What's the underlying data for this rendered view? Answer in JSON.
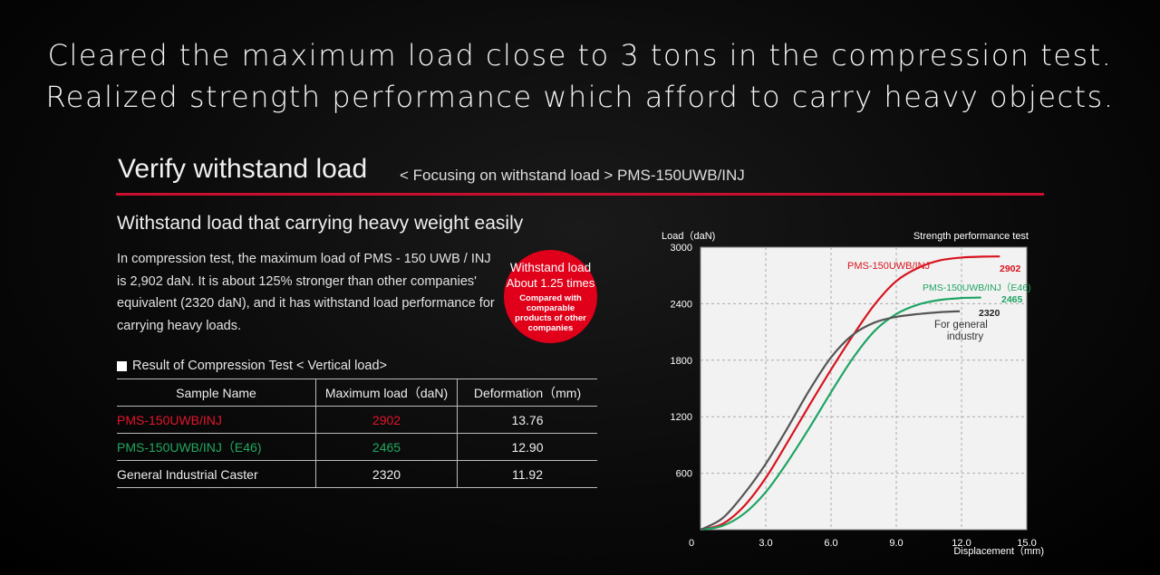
{
  "headline": {
    "line1": "Cleared the maximum load close to 3 tons in the compression test.",
    "line2": "Realized strength performance which afford to carry heavy objects."
  },
  "section": {
    "title": "Verify withstand load",
    "subtitle": "< Focusing on withstand load > PMS-150UWB/INJ"
  },
  "subhead": "Withstand load that carrying heavy weight easily",
  "description": "In compression test, the maximum load of PMS - 150 UWB / INJ is 2,902 daN. It is about 125% stronger than other companies' equivalent (2320 daN), and it has withstand load performance for carrying heavy loads.",
  "badge": {
    "line1": "Withstand load",
    "line2": "About 1.25 times",
    "line3": "Compared with comparable  products of other companies",
    "color": "#e0001a"
  },
  "table": {
    "label": "Result of Compression Test < Vertical load>",
    "headers": [
      "Sample Name",
      "Maximum load（daN)",
      "Deformation（mm)"
    ],
    "rows": [
      {
        "name": "PMS-150UWB/INJ",
        "load": "2902",
        "deformation": "13.76"
      },
      {
        "name": "PMS-150UWB/INJ（E46)",
        "load": "2465",
        "deformation": "12.90"
      },
      {
        "name": "General Industrial Caster",
        "load": "2320",
        "deformation": "11.92"
      }
    ]
  },
  "chart_data": {
    "type": "line",
    "title": "Strength performance test",
    "xlabel": "Displacement（mm)",
    "ylabel": "Load（daN)",
    "xlim": [
      0,
      15
    ],
    "ylim": [
      0,
      3000
    ],
    "x_ticks": [
      "0",
      "3.0",
      "6.0",
      "9.0",
      "12.0",
      "15.0"
    ],
    "y_ticks": [
      "600",
      "1200",
      "1800",
      "2400",
      "3000"
    ],
    "grid": true,
    "series": [
      {
        "name": "PMS-150UWB/INJ",
        "color": "#d7141e",
        "end_label": "2902",
        "x": [
          0,
          1,
          2,
          3,
          4,
          5,
          6,
          7,
          8,
          9,
          10,
          11,
          12,
          13,
          13.76
        ],
        "y": [
          0,
          60,
          250,
          550,
          930,
          1320,
          1700,
          2060,
          2390,
          2640,
          2780,
          2860,
          2890,
          2900,
          2902
        ]
      },
      {
        "name": "PMS-150UWB/INJ（E46)",
        "color": "#1fa463",
        "end_label": "2465",
        "x": [
          0,
          1,
          2,
          3,
          4,
          5,
          6,
          7,
          8,
          9,
          10,
          11,
          12,
          12.9
        ],
        "y": [
          0,
          40,
          170,
          400,
          720,
          1080,
          1460,
          1820,
          2110,
          2290,
          2390,
          2440,
          2460,
          2465
        ]
      },
      {
        "name": "For general industry",
        "color": "#555555",
        "end_label": "2320",
        "x": [
          0,
          1,
          2,
          3,
          4,
          5,
          6,
          7,
          8,
          9,
          10,
          11,
          11.92
        ],
        "y": [
          0,
          120,
          380,
          700,
          1080,
          1480,
          1830,
          2070,
          2200,
          2260,
          2290,
          2310,
          2320
        ]
      }
    ]
  }
}
